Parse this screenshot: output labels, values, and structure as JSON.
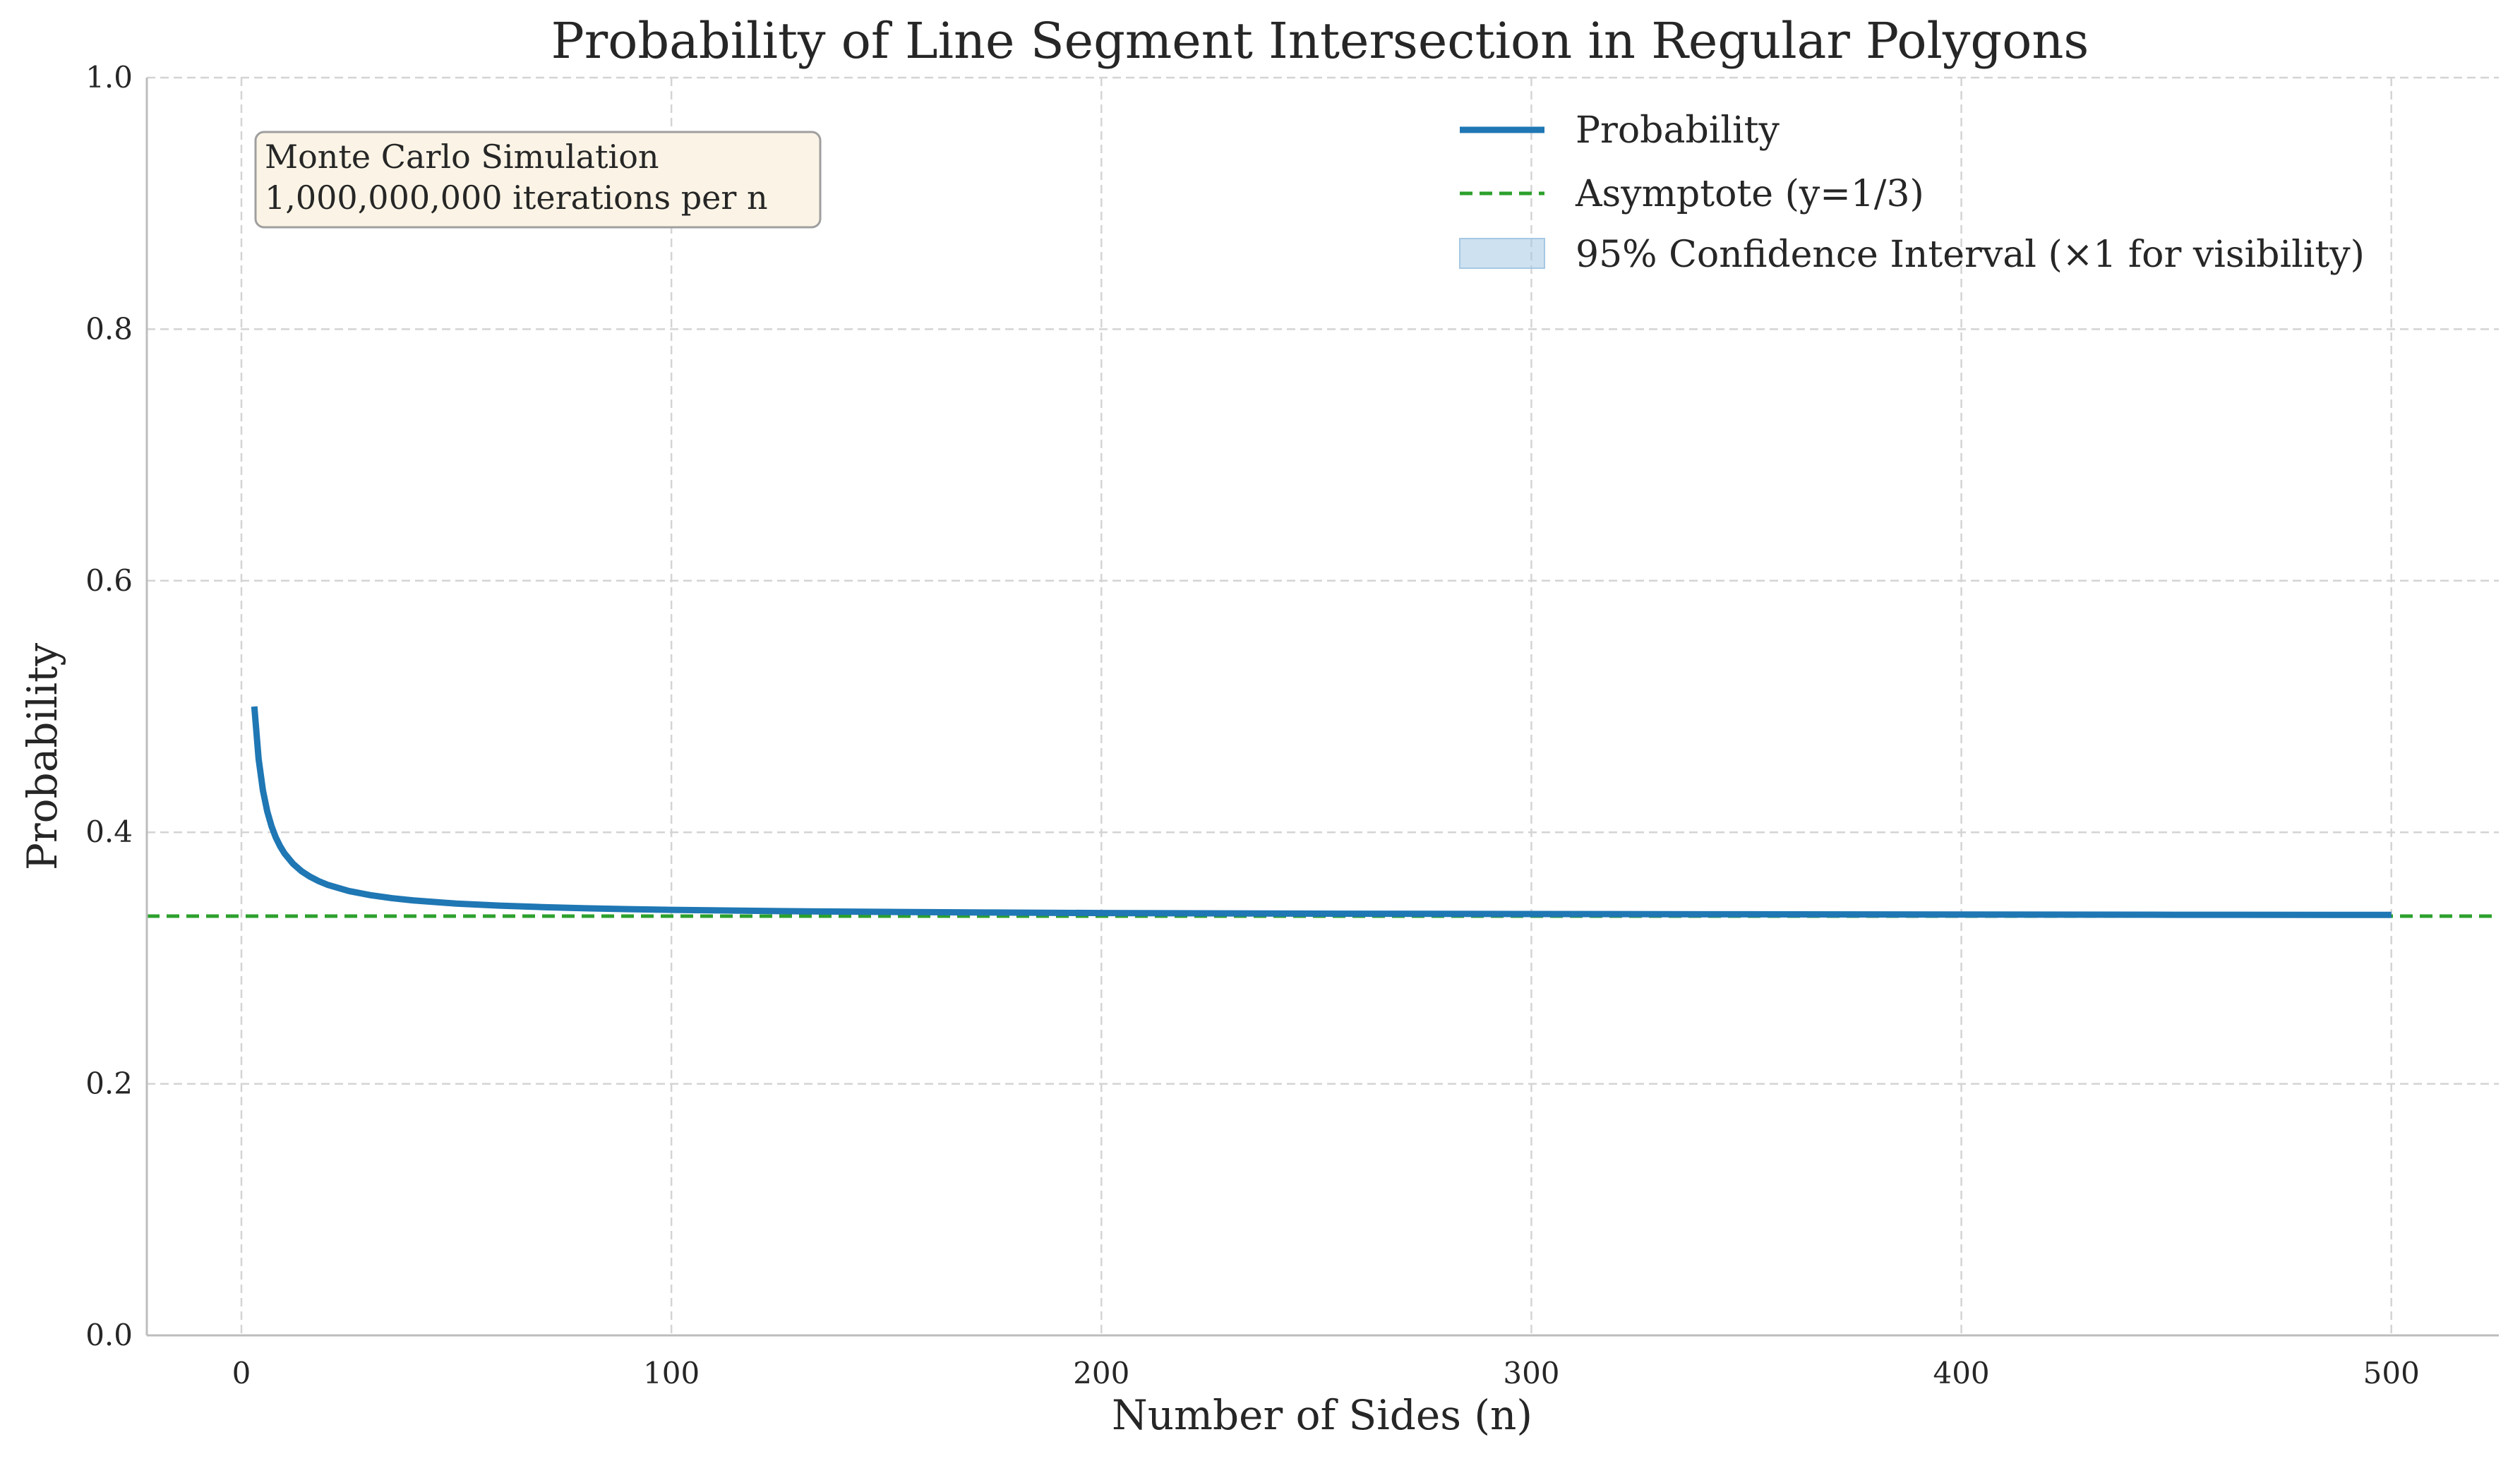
{
  "chart_data": {
    "type": "line",
    "title": "Probability of Line Segment Intersection in Regular Polygons",
    "xlabel": "Number of Sides (n)",
    "ylabel": "Probability",
    "xlim": [
      -22,
      525
    ],
    "ylim": [
      0.0,
      1.0
    ],
    "xticks": [
      0,
      100,
      200,
      300,
      400,
      500
    ],
    "xtick_labels": [
      "0",
      "100",
      "200",
      "300",
      "400",
      "500"
    ],
    "yticks": [
      0.0,
      0.2,
      0.4,
      0.6,
      0.8,
      1.0
    ],
    "ytick_labels": [
      "0.0",
      "0.2",
      "0.4",
      "0.6",
      "0.8",
      "1.0"
    ],
    "grid": true,
    "legend_position": "top-right",
    "series": [
      {
        "name": "Probability",
        "color": "#1f77b4",
        "style": "solid",
        "x": [
          3,
          4,
          5,
          6,
          7,
          8,
          9,
          10,
          12,
          14,
          16,
          18,
          20,
          25,
          30,
          35,
          40,
          50,
          60,
          70,
          80,
          90,
          100,
          125,
          150,
          175,
          200,
          250,
          300,
          350,
          400,
          450,
          500
        ],
        "y": [
          0.5,
          0.4583,
          0.4333,
          0.4167,
          0.4048,
          0.3958,
          0.3889,
          0.3833,
          0.375,
          0.369,
          0.3646,
          0.3611,
          0.3583,
          0.3533,
          0.35,
          0.3476,
          0.3458,
          0.3433,
          0.3417,
          0.3405,
          0.3396,
          0.3389,
          0.3383,
          0.3373,
          0.3367,
          0.3362,
          0.3358,
          0.3353,
          0.335,
          0.3348,
          0.3346,
          0.3344,
          0.3343
        ]
      },
      {
        "name": "Asymptote (y=1/3)",
        "color": "#2ca02c",
        "style": "dashed",
        "y_constant": 0.3333
      }
    ],
    "confidence_band": {
      "name": "95% Confidence Interval (×1 for visibility)",
      "color": "#a6c8e3",
      "half_width": 3e-05
    },
    "annotation": {
      "lines": [
        "Monte Carlo Simulation",
        "1,000,000,000 iterations per n"
      ],
      "background": "#fbf4e6",
      "border": "#9f9f9f"
    }
  }
}
